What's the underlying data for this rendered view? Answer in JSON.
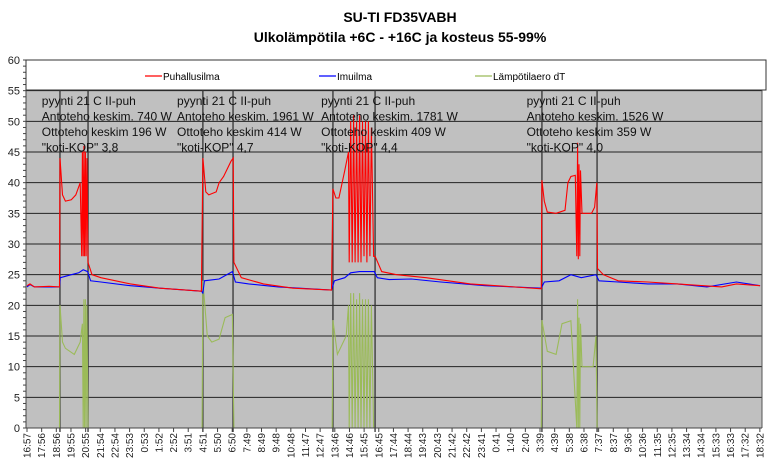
{
  "chart_data": {
    "type": "line",
    "title": "SU-TI FD35VABH",
    "subtitle": "Ulkolämpötila +6C - +16C ja kosteus 55-99%",
    "xlabel": "",
    "ylabel": "",
    "ylim": [
      0,
      60
    ],
    "yticks": [
      0,
      5,
      10,
      15,
      20,
      25,
      30,
      35,
      40,
      45,
      50,
      55,
      60
    ],
    "grid": true,
    "legend_position": "top",
    "x_unit": "hours since 16:57",
    "xlim": [
      0,
      49.6
    ],
    "xtick_labels": [
      "16:57",
      "17:56",
      "18:56",
      "19:55",
      "20:55",
      "21:54",
      "22:54",
      "23:53",
      "0:53",
      "1:52",
      "2:52",
      "3:51",
      "4:51",
      "5:50",
      "6:50",
      "7:49",
      "8:49",
      "9:48",
      "10:48",
      "11:47",
      "12:47",
      "13:46",
      "14:46",
      "15:45",
      "16:45",
      "17:44",
      "18:44",
      "19:43",
      "20:43",
      "21:42",
      "22:42",
      "23:41",
      "0:41",
      "1:40",
      "2:40",
      "3:39",
      "4:39",
      "5:38",
      "6:38",
      "7:37",
      "8:37",
      "9:36",
      "10:36",
      "11:35",
      "12:35",
      "13:34",
      "14:34",
      "15:33",
      "16:33",
      "17:32",
      "18:32"
    ],
    "xtick_step_hours": 0.9917,
    "markers_hours": [
      2.23,
      4.13,
      11.9,
      13.94,
      20.7,
      23.55,
      34.84,
      38.57
    ],
    "series": [
      {
        "name": "Puhallusilma",
        "color": "#ff0000",
        "points": [
          [
            0,
            23.2
          ],
          [
            0.2,
            23.5
          ],
          [
            0.5,
            23
          ],
          [
            1.5,
            23.1
          ],
          [
            2.2,
            23
          ],
          [
            2.23,
            44
          ],
          [
            2.4,
            38
          ],
          [
            2.6,
            37
          ],
          [
            3.0,
            37.2
          ],
          [
            3.3,
            38
          ],
          [
            3.6,
            40
          ],
          [
            3.7,
            28
          ],
          [
            3.75,
            45
          ],
          [
            3.8,
            28
          ],
          [
            3.85,
            46
          ],
          [
            3.9,
            28
          ],
          [
            3.95,
            45
          ],
          [
            4.0,
            28
          ],
          [
            4.05,
            44
          ],
          [
            4.13,
            27
          ],
          [
            4.4,
            25
          ],
          [
            5,
            24.5
          ],
          [
            7,
            23.5
          ],
          [
            9,
            22.8
          ],
          [
            11.8,
            22.3
          ],
          [
            11.9,
            44
          ],
          [
            12.1,
            38.5
          ],
          [
            12.3,
            38
          ],
          [
            12.8,
            38.5
          ],
          [
            13.0,
            40
          ],
          [
            13.3,
            41
          ],
          [
            13.8,
            43.5
          ],
          [
            13.95,
            44
          ],
          [
            14.0,
            27
          ],
          [
            14.5,
            24.5
          ],
          [
            16,
            23.5
          ],
          [
            18,
            22.8
          ],
          [
            20.6,
            22.5
          ],
          [
            20.7,
            39
          ],
          [
            20.9,
            37.5
          ],
          [
            21.1,
            37.5
          ],
          [
            21.5,
            42
          ],
          [
            21.75,
            45
          ],
          [
            21.8,
            27
          ],
          [
            21.9,
            50
          ],
          [
            22.0,
            27
          ],
          [
            22.1,
            51
          ],
          [
            22.2,
            27
          ],
          [
            22.3,
            50
          ],
          [
            22.4,
            27
          ],
          [
            22.5,
            51
          ],
          [
            22.6,
            27
          ],
          [
            22.7,
            50
          ],
          [
            22.8,
            28
          ],
          [
            22.9,
            50
          ],
          [
            23.0,
            27
          ],
          [
            23.1,
            50
          ],
          [
            23.2,
            28
          ],
          [
            23.3,
            49
          ],
          [
            23.45,
            28
          ],
          [
            23.55,
            28
          ],
          [
            24,
            25.5
          ],
          [
            25,
            25
          ],
          [
            27,
            24.5
          ],
          [
            30,
            23.5
          ],
          [
            34.8,
            22.7
          ],
          [
            34.84,
            40.4
          ],
          [
            35.0,
            37
          ],
          [
            35.2,
            35.2
          ],
          [
            35.8,
            35
          ],
          [
            36.4,
            35.5
          ],
          [
            36.6,
            40
          ],
          [
            36.8,
            41
          ],
          [
            37.1,
            41.2
          ],
          [
            37.2,
            28
          ],
          [
            37.25,
            46.5
          ],
          [
            37.3,
            27.5
          ],
          [
            37.35,
            43
          ],
          [
            37.4,
            28
          ],
          [
            37.45,
            42
          ],
          [
            37.55,
            35
          ],
          [
            38.2,
            35
          ],
          [
            38.4,
            36
          ],
          [
            38.5,
            38.5
          ],
          [
            38.55,
            40
          ],
          [
            38.6,
            26
          ],
          [
            39,
            25
          ],
          [
            40,
            24
          ],
          [
            42,
            23.8
          ],
          [
            44,
            23.5
          ],
          [
            47,
            23
          ],
          [
            48,
            23.5
          ],
          [
            49.6,
            23.2
          ]
        ]
      },
      {
        "name": "Imuilma",
        "color": "#0000ff",
        "points": [
          [
            0,
            23
          ],
          [
            0.2,
            23.4
          ],
          [
            0.5,
            23
          ],
          [
            2.2,
            23
          ],
          [
            2.25,
            24.5
          ],
          [
            3,
            25
          ],
          [
            3.5,
            25.3
          ],
          [
            3.8,
            25.8
          ],
          [
            4.1,
            25.5
          ],
          [
            4.3,
            24
          ],
          [
            5,
            23.8
          ],
          [
            7,
            23.2
          ],
          [
            9,
            22.8
          ],
          [
            11.8,
            22.3
          ],
          [
            11.9,
            22
          ],
          [
            12.0,
            24
          ],
          [
            13,
            24.3
          ],
          [
            13.9,
            25.5
          ],
          [
            14.1,
            23.8
          ],
          [
            15,
            23.5
          ],
          [
            17,
            23
          ],
          [
            20.6,
            22.5
          ],
          [
            20.8,
            24
          ],
          [
            21.5,
            24.5
          ],
          [
            21.9,
            25.3
          ],
          [
            22.5,
            25.5
          ],
          [
            23.5,
            25.5
          ],
          [
            23.7,
            24.5
          ],
          [
            24.5,
            24.2
          ],
          [
            26,
            24.3
          ],
          [
            28,
            23.8
          ],
          [
            31,
            23.2
          ],
          [
            34.8,
            22.8
          ],
          [
            35,
            23.8
          ],
          [
            36,
            24
          ],
          [
            36.8,
            25
          ],
          [
            37.5,
            24.5
          ],
          [
            38.5,
            25
          ],
          [
            38.7,
            24
          ],
          [
            40,
            23.8
          ],
          [
            42,
            23.5
          ],
          [
            44,
            23.5
          ],
          [
            46,
            23
          ],
          [
            48,
            23.8
          ],
          [
            49.6,
            23.2
          ]
        ]
      },
      {
        "name": "Lämpötilaero dT",
        "color": "#9bbb59",
        "points": [
          [
            0,
            0
          ],
          [
            2.2,
            0
          ],
          [
            2.23,
            20
          ],
          [
            2.4,
            14
          ],
          [
            2.6,
            13
          ],
          [
            3.2,
            12
          ],
          [
            3.6,
            14
          ],
          [
            3.75,
            17
          ],
          [
            3.8,
            0
          ],
          [
            3.85,
            21
          ],
          [
            3.9,
            0
          ],
          [
            3.95,
            21
          ],
          [
            4.0,
            0
          ],
          [
            4.05,
            20
          ],
          [
            4.13,
            0
          ],
          [
            11.85,
            0
          ],
          [
            11.9,
            24
          ],
          [
            12.2,
            15
          ],
          [
            12.5,
            14
          ],
          [
            13.0,
            14.5
          ],
          [
            13.4,
            18
          ],
          [
            13.9,
            18.5
          ],
          [
            14.0,
            0
          ],
          [
            20.65,
            0
          ],
          [
            20.7,
            17.6
          ],
          [
            21.0,
            12
          ],
          [
            21.6,
            15
          ],
          [
            21.75,
            20
          ],
          [
            21.8,
            0
          ],
          [
            21.9,
            22
          ],
          [
            22.0,
            0
          ],
          [
            22.1,
            22
          ],
          [
            22.2,
            0
          ],
          [
            22.3,
            21
          ],
          [
            22.4,
            0
          ],
          [
            22.5,
            22
          ],
          [
            22.6,
            0
          ],
          [
            22.7,
            21
          ],
          [
            22.8,
            0
          ],
          [
            22.9,
            21
          ],
          [
            23.0,
            0
          ],
          [
            23.1,
            21
          ],
          [
            23.2,
            0
          ],
          [
            23.3,
            20
          ],
          [
            23.45,
            0
          ],
          [
            23.6,
            0
          ],
          [
            34.8,
            0
          ],
          [
            34.84,
            17.6
          ],
          [
            35.2,
            12.5
          ],
          [
            35.8,
            12
          ],
          [
            36.2,
            17
          ],
          [
            36.8,
            17.5
          ],
          [
            37.2,
            0
          ],
          [
            37.25,
            21
          ],
          [
            37.3,
            0
          ],
          [
            37.35,
            18
          ],
          [
            37.4,
            0
          ],
          [
            37.45,
            17
          ],
          [
            37.55,
            10
          ],
          [
            38.3,
            10
          ],
          [
            38.5,
            15
          ],
          [
            38.57,
            0
          ],
          [
            49.6,
            0
          ]
        ]
      }
    ],
    "annotations": [
      {
        "at_hours": 1.0,
        "lines": [
          "pyynti 21 C II-puh",
          "Antoteho keskim. 740 W",
          "Ottoteho keskim 196 W",
          "\"koti-KOP\" 3,8"
        ]
      },
      {
        "at_hours": 10.15,
        "lines": [
          "pyynti 21 C II-puh",
          "Antoteho keskim. 1961 W",
          "Ottoteho keskim 414 W",
          "\"koti-KOP\" 4,7"
        ]
      },
      {
        "at_hours": 19.9,
        "lines": [
          "pyynti 21 C II-puh",
          "Antoteho keskim. 1781 W",
          "Ottoteho keskim 409 W",
          "\"koti-KOP\" 4,4"
        ]
      },
      {
        "at_hours": 33.8,
        "lines": [
          "pyynti 21 C II-puh",
          "Antoteho keskim. 1526 W",
          "Ottoteho keskim 359 W",
          "\"koti-KOP\" 4,0"
        ]
      }
    ]
  }
}
